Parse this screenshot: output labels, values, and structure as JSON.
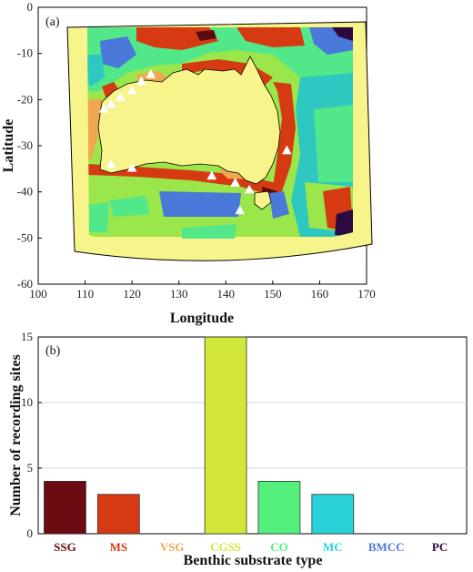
{
  "chart_data": [
    {
      "type": "map",
      "panel_label": "(a)",
      "xlabel": "Longitude",
      "ylabel": "Latitude",
      "xlim": [
        100,
        170
      ],
      "ylim": [
        -60,
        0
      ],
      "xticks": [
        100,
        110,
        120,
        130,
        140,
        150,
        160,
        170
      ],
      "yticks": [
        0,
        -10,
        -20,
        -30,
        -40,
        -50,
        -60
      ],
      "substrate_colors": {
        "land": "#f6f48a",
        "SSG": "#5a0a12",
        "MS": "#d63a12",
        "VSG": "#f0a850",
        "CGSS": "#9be64a",
        "CO": "#52e88a",
        "MC": "#2ec8c0",
        "BMCC": "#4a78d8",
        "PC": "#2a0a40"
      },
      "recording_sites": [
        {
          "lon": 114.0,
          "lat": -22.0
        },
        {
          "lon": 115.5,
          "lat": -21.0
        },
        {
          "lon": 117.5,
          "lat": -19.5
        },
        {
          "lon": 120.0,
          "lat": -18.0
        },
        {
          "lon": 122.0,
          "lat": -16.0
        },
        {
          "lon": 124.0,
          "lat": -14.5
        },
        {
          "lon": 115.5,
          "lat": -34.0
        },
        {
          "lon": 120.0,
          "lat": -34.8
        },
        {
          "lon": 137.0,
          "lat": -36.5
        },
        {
          "lon": 142.0,
          "lat": -38.0
        },
        {
          "lon": 145.0,
          "lat": -39.5
        },
        {
          "lon": 143.0,
          "lat": -44.0
        },
        {
          "lon": 153.0,
          "lat": -31.0
        }
      ]
    },
    {
      "type": "bar",
      "panel_label": "(b)",
      "xlabel": "Benthic substrate type",
      "ylabel": "Number of recording sites",
      "ylim": [
        0,
        15
      ],
      "yticks": [
        0,
        5,
        10,
        15
      ],
      "categories": [
        "SSG",
        "MS",
        "VSG",
        "CGSS",
        "CO",
        "MC",
        "BMCC",
        "PC"
      ],
      "values": [
        4,
        3,
        0,
        15,
        4,
        3,
        0,
        0
      ],
      "colors": [
        "#6b0a10",
        "#d63a12",
        "#f0a850",
        "#d2e638",
        "#52f07a",
        "#28d2d8",
        "#4a78d8",
        "#2a0a40"
      ],
      "grid": true
    }
  ]
}
